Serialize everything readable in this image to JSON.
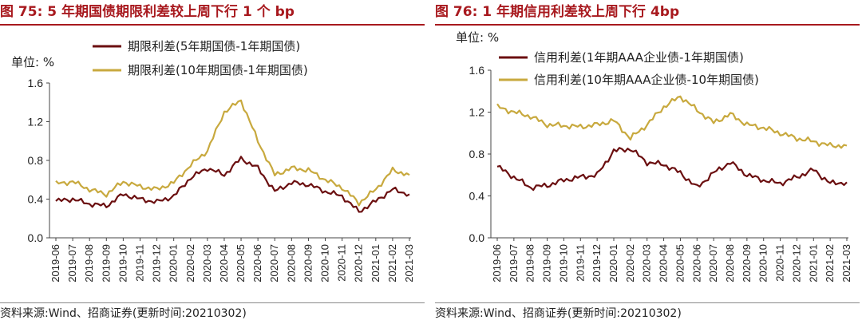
{
  "chart_data": [
    {
      "type": "line",
      "title": "图 75:  5 年期国债期限利差较上周下行 1 个 bp",
      "unit_label": "单位:  %",
      "source": "资料来源:Wind、招商证券(更新时间:20210302)",
      "ylim": [
        0.0,
        1.6
      ],
      "yticks": [
        "1.6",
        "1.2",
        "0.8",
        "0.4",
        "0.0"
      ],
      "ytick_values": [
        1.6,
        1.2,
        0.8,
        0.4,
        0.0
      ],
      "x_tick_labels": [
        "2019-06",
        "2019-07",
        "2019-08",
        "2019-09",
        "2019-10",
        "2019-11",
        "2019-12",
        "2020-01",
        "2020-02",
        "2020-03",
        "2020-04",
        "2020-05",
        "2020-06",
        "2020-07",
        "2020-08",
        "2020-09",
        "2020-10",
        "2020-11",
        "2020-12",
        "2021-01",
        "2021-02",
        "2021-03"
      ],
      "legend_position": "top",
      "grid": false,
      "x": [
        "2019-06",
        "2019-07",
        "2019-08",
        "2019-09",
        "2019-10",
        "2019-11",
        "2019-12",
        "2020-01",
        "2020-02",
        "2020-03",
        "2020-04",
        "2020-05",
        "2020-06",
        "2020-07",
        "2020-08",
        "2020-09",
        "2020-10",
        "2020-11",
        "2020-12",
        "2021-01",
        "2021-02",
        "2021-03"
      ],
      "series": [
        {
          "name": "期限利差(5年期国债-1年期国债)",
          "color": "#6b0f10",
          "values": [
            0.38,
            0.4,
            0.35,
            0.33,
            0.45,
            0.4,
            0.37,
            0.43,
            0.62,
            0.72,
            0.65,
            0.82,
            0.72,
            0.48,
            0.57,
            0.55,
            0.48,
            0.43,
            0.27,
            0.38,
            0.5,
            0.45
          ]
        },
        {
          "name": "期限利差(10年期国债-1年期国债)",
          "color": "#c8a93e",
          "values": [
            0.56,
            0.58,
            0.5,
            0.45,
            0.58,
            0.53,
            0.5,
            0.57,
            0.75,
            0.9,
            1.3,
            1.42,
            1.0,
            0.65,
            0.72,
            0.7,
            0.6,
            0.52,
            0.36,
            0.5,
            0.7,
            0.65
          ]
        }
      ]
    },
    {
      "type": "line",
      "title": "图 76:  1 年期信用利差较上周下行 4bp",
      "unit_label": "单位:  %",
      "source": "资料来源:Wind、招商证券(更新时间:20210302)",
      "ylim": [
        0.0,
        1.6
      ],
      "yticks": [
        "1.6",
        "1.2",
        "0.8",
        "0.4",
        "0.0"
      ],
      "ytick_values": [
        1.6,
        1.2,
        0.8,
        0.4,
        0.0
      ],
      "x_tick_labels": [
        "2019-06",
        "2019-07",
        "2019-08",
        "2019-09",
        "2019-10",
        "2019-11",
        "2019-12",
        "2020-01",
        "2020-02",
        "2020-03",
        "2020-04",
        "2020-05",
        "2020-06",
        "2020-07",
        "2020-08",
        "2020-09",
        "2020-10",
        "2020-11",
        "2020-12",
        "2021-01",
        "2021-02",
        "2021-03"
      ],
      "legend_position": "top",
      "grid": false,
      "x": [
        "2019-06",
        "2019-07",
        "2019-08",
        "2019-09",
        "2019-10",
        "2019-11",
        "2019-12",
        "2020-01",
        "2020-02",
        "2020-03",
        "2020-04",
        "2020-05",
        "2020-06",
        "2020-07",
        "2020-08",
        "2020-09",
        "2020-10",
        "2020-11",
        "2020-12",
        "2021-01",
        "2021-02",
        "2021-03"
      ],
      "series": [
        {
          "name": "信用利差(1年期AAA企业债-1年期国债)",
          "color": "#6b0f10",
          "values": [
            0.68,
            0.58,
            0.48,
            0.5,
            0.55,
            0.58,
            0.6,
            0.83,
            0.85,
            0.72,
            0.7,
            0.62,
            0.48,
            0.62,
            0.72,
            0.6,
            0.55,
            0.52,
            0.58,
            0.65,
            0.52,
            0.53
          ]
        },
        {
          "name": "信用利差(10年期AAA企业债-10年期国债)",
          "color": "#c8a93e",
          "values": [
            1.25,
            1.2,
            1.16,
            1.08,
            1.07,
            1.06,
            1.08,
            1.12,
            0.95,
            1.08,
            1.25,
            1.35,
            1.22,
            1.1,
            1.18,
            1.08,
            1.05,
            1.0,
            0.95,
            0.92,
            0.88,
            0.88
          ]
        }
      ]
    }
  ]
}
